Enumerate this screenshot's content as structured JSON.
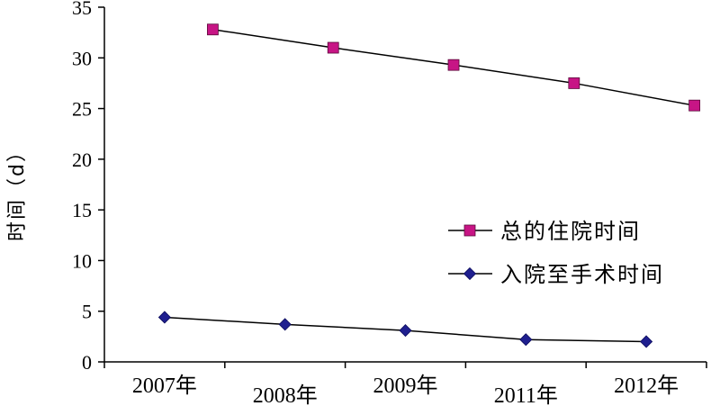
{
  "chart_data": {
    "type": "line",
    "ylabel": "时间（d）",
    "xlabel": "",
    "ylim": [
      0,
      35
    ],
    "yticks": [
      0,
      5,
      10,
      15,
      20,
      25,
      30,
      35
    ],
    "categories": [
      "2007年",
      "2008年",
      "2009年",
      "2011年",
      "2012年"
    ],
    "grid": false,
    "legend_position": "right",
    "series": [
      {
        "name": "总的住院时间",
        "marker": "square",
        "color": "#c71585",
        "points": [
          {
            "x": 2007.4,
            "y": 32.8
          },
          {
            "x": 2008.4,
            "y": 31.0
          },
          {
            "x": 2009.4,
            "y": 29.3
          },
          {
            "x": 2010.4,
            "y": 27.5
          },
          {
            "x": 2011.4,
            "y": 25.3
          }
        ]
      },
      {
        "name": "入院至手术时间",
        "marker": "diamond",
        "color": "#1f1f8f",
        "points": [
          {
            "x": 2007.0,
            "y": 4.4
          },
          {
            "x": 2008.0,
            "y": 3.7
          },
          {
            "x": 2009.0,
            "y": 3.1
          },
          {
            "x": 2010.0,
            "y": 2.2
          },
          {
            "x": 2011.0,
            "y": 2.0
          }
        ]
      }
    ]
  }
}
